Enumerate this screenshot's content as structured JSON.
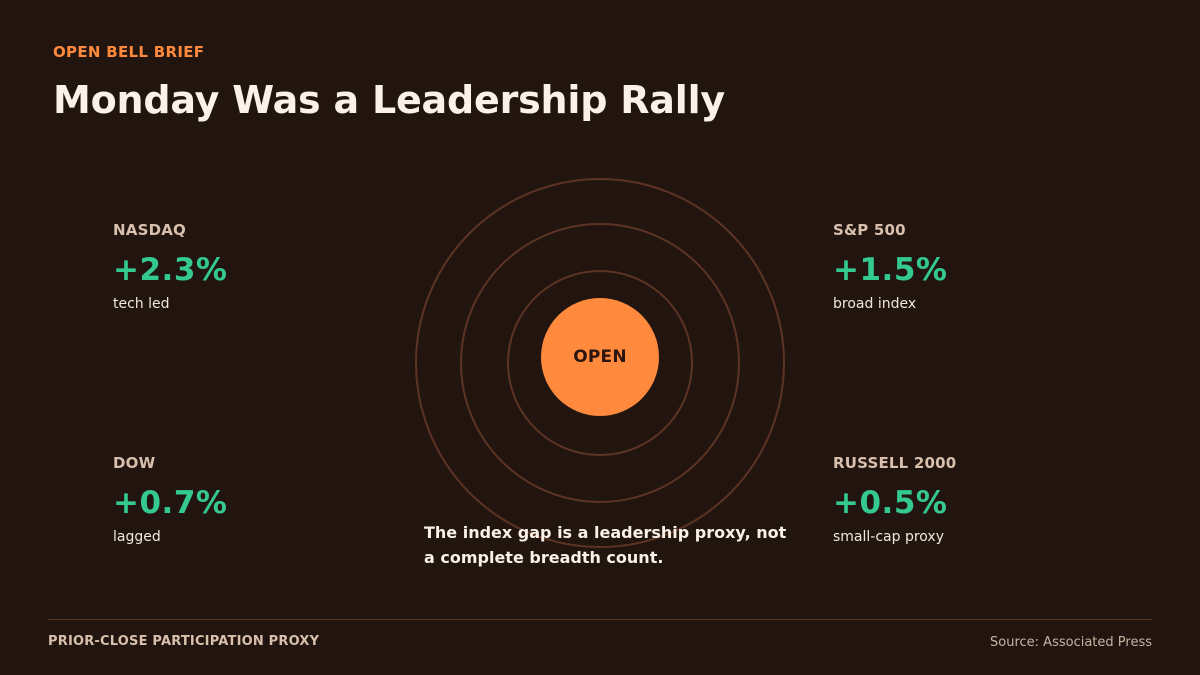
{
  "header": {
    "eyebrow": "OPEN BELL BRIEF",
    "title": "Monday Was a Leadership Rally"
  },
  "metrics": {
    "nasdaq": {
      "label": "NASDAQ",
      "value": "+2.3%",
      "note": "tech led"
    },
    "sp500": {
      "label": "S&P 500",
      "value": "+1.5%",
      "note": "broad index"
    },
    "dow": {
      "label": "DOW",
      "value": "+0.7%",
      "note": "lagged"
    },
    "russell": {
      "label": "RUSSELL 2000",
      "value": "+0.5%",
      "note": "small-cap proxy"
    }
  },
  "center": {
    "label": "OPEN"
  },
  "caption": "The index gap is a leadership proxy, not a complete breadth count.",
  "footer": {
    "left": "PRIOR-CLOSE PARTICIPATION PROXY",
    "source": "Source: Associated Press"
  },
  "colors": {
    "background": "#22150f",
    "accent": "#ff8a3d",
    "positive": "#34c98e",
    "ring": "#5c3324"
  }
}
